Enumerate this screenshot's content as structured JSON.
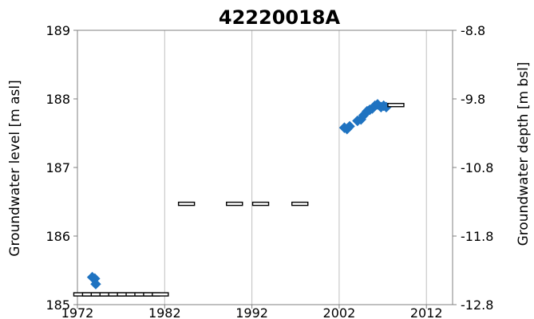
{
  "chart_data": {
    "type": "scatter",
    "title": "42220018A",
    "xlabel": "",
    "ylabel": "Groundwater level [m asl]",
    "y2label": "Groundwater depth [m bsl]",
    "xlim": [
      1972,
      2015
    ],
    "ylim": [
      185,
      189
    ],
    "y2lim": [
      -12.8,
      -8.8
    ],
    "xticks": [
      "1972",
      "1982",
      "1992",
      "2002",
      "2012"
    ],
    "yticks": [
      "185",
      "186",
      "187",
      "188",
      "189"
    ],
    "y2ticks": [
      "-12.8",
      "-11.8",
      "-10.8",
      "-9.8",
      "-8.8"
    ],
    "grid": {
      "vertical": true,
      "horizontal": false
    },
    "colors": {
      "measured": "#1f73c1",
      "range_marker": "#000000",
      "grid": "#bfbfbf",
      "axis": "#808080"
    },
    "series": [
      {
        "marker": "diamond",
        "points": [
          [
            1973.7,
            185.4
          ],
          [
            1974.0,
            185.38
          ],
          [
            1974.1,
            185.3
          ],
          [
            2002.6,
            187.58
          ],
          [
            2002.9,
            187.56
          ],
          [
            2003.2,
            187.6
          ],
          [
            2004.1,
            187.68
          ],
          [
            2004.5,
            187.7
          ],
          [
            2004.8,
            187.76
          ],
          [
            2005.2,
            187.82
          ],
          [
            2005.5,
            187.84
          ],
          [
            2005.8,
            187.86
          ],
          [
            2006.1,
            187.9
          ],
          [
            2006.4,
            187.92
          ],
          [
            2006.8,
            187.88
          ],
          [
            2007.1,
            187.9
          ],
          [
            2007.4,
            187.88
          ]
        ]
      },
      {
        "marker": "horizontal-bar",
        "points": [
          [
            1972.5,
            185.15
          ],
          [
            1973.5,
            185.15
          ],
          [
            1974.5,
            185.15
          ],
          [
            1975.5,
            185.15
          ],
          [
            1976.5,
            185.15
          ],
          [
            1977.5,
            185.15
          ],
          [
            1978.5,
            185.15
          ],
          [
            1979.5,
            185.15
          ],
          [
            1980.5,
            185.15
          ],
          [
            1981.5,
            185.15
          ],
          [
            1984.5,
            186.47
          ],
          [
            1990.0,
            186.47
          ],
          [
            1993.0,
            186.47
          ],
          [
            1997.5,
            186.47
          ],
          [
            2008.5,
            187.91
          ]
        ]
      }
    ]
  }
}
